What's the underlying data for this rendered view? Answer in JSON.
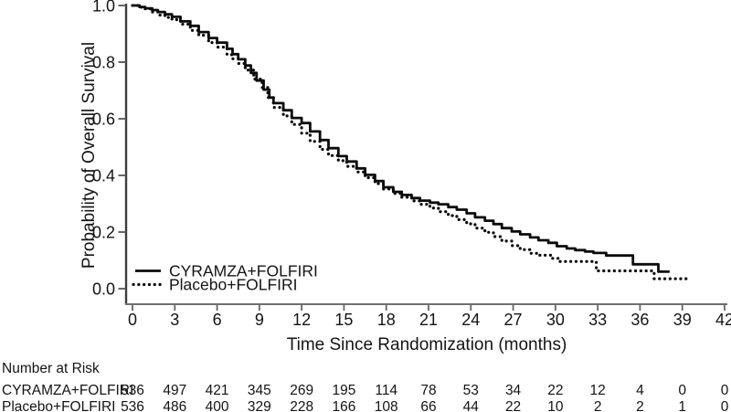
{
  "chart_data": {
    "type": "line",
    "subtype": "kaplan-meier-step",
    "title": "",
    "xlabel": "Time Since Randomization (months)",
    "ylabel": "Probability of Overall Survival",
    "xlim": [
      0,
      42
    ],
    "ylim": [
      0.0,
      1.0
    ],
    "x_ticks": [
      0,
      3,
      6,
      9,
      12,
      15,
      18,
      21,
      24,
      27,
      30,
      33,
      36,
      39,
      42
    ],
    "y_ticks": [
      "1.0",
      "0.8",
      "0.6",
      "0.4",
      "0.2",
      "0.0"
    ],
    "y_tick_values": [
      1.0,
      0.8,
      0.6,
      0.4,
      0.2,
      0.0
    ],
    "grid": "off",
    "legend_position": "inside-bottom-left",
    "line_color": "#0b0b0b",
    "series": [
      {
        "name": "CYRAMZA+FOLFIRI",
        "line_style": "solid",
        "points": [
          [
            0,
            1.0
          ],
          [
            0.5,
            0.995
          ],
          [
            0.9,
            0.99
          ],
          [
            1.4,
            0.984
          ],
          [
            1.8,
            0.977
          ],
          [
            2.3,
            0.969
          ],
          [
            2.8,
            0.96
          ],
          [
            3.4,
            0.944
          ],
          [
            4.1,
            0.928
          ],
          [
            4.7,
            0.906
          ],
          [
            5.4,
            0.885
          ],
          [
            6.0,
            0.869
          ],
          [
            6.7,
            0.847
          ],
          [
            7.1,
            0.828
          ],
          [
            7.5,
            0.81
          ],
          [
            8.0,
            0.788
          ],
          [
            8.4,
            0.762
          ],
          [
            8.8,
            0.735
          ],
          [
            9.3,
            0.703
          ],
          [
            9.7,
            0.675
          ],
          [
            10.0,
            0.655
          ],
          [
            10.7,
            0.63
          ],
          [
            11.3,
            0.603
          ],
          [
            12.0,
            0.585
          ],
          [
            12.6,
            0.555
          ],
          [
            13.3,
            0.525
          ],
          [
            13.9,
            0.496
          ],
          [
            14.6,
            0.468
          ],
          [
            15.2,
            0.449
          ],
          [
            15.9,
            0.425
          ],
          [
            16.5,
            0.402
          ],
          [
            17.2,
            0.38
          ],
          [
            17.8,
            0.358
          ],
          [
            18.5,
            0.342
          ],
          [
            19.1,
            0.331
          ],
          [
            19.8,
            0.32
          ],
          [
            20.4,
            0.311
          ],
          [
            21.1,
            0.304
          ],
          [
            21.7,
            0.298
          ],
          [
            22.4,
            0.288
          ],
          [
            23.0,
            0.279
          ],
          [
            23.7,
            0.266
          ],
          [
            24.3,
            0.252
          ],
          [
            25.0,
            0.24
          ],
          [
            25.6,
            0.228
          ],
          [
            26.2,
            0.214
          ],
          [
            26.9,
            0.202
          ],
          [
            27.5,
            0.192
          ],
          [
            28.2,
            0.181
          ],
          [
            28.8,
            0.171
          ],
          [
            29.5,
            0.162
          ],
          [
            30.1,
            0.15
          ],
          [
            30.8,
            0.142
          ],
          [
            31.4,
            0.136
          ],
          [
            32.1,
            0.131
          ],
          [
            32.7,
            0.126
          ],
          [
            33.6,
            0.117
          ],
          [
            35.5,
            0.086
          ],
          [
            37.3,
            0.06
          ],
          [
            38.1,
            0.06
          ]
        ]
      },
      {
        "name": "Placebo+FOLFIRI",
        "line_style": "dotted",
        "points": [
          [
            0,
            1.0
          ],
          [
            0.5,
            0.994
          ],
          [
            0.9,
            0.988
          ],
          [
            1.4,
            0.977
          ],
          [
            1.8,
            0.966
          ],
          [
            2.3,
            0.958
          ],
          [
            2.8,
            0.95
          ],
          [
            3.4,
            0.934
          ],
          [
            4.1,
            0.912
          ],
          [
            4.7,
            0.895
          ],
          [
            5.4,
            0.869
          ],
          [
            6.0,
            0.853
          ],
          [
            6.7,
            0.826
          ],
          [
            7.1,
            0.812
          ],
          [
            7.5,
            0.795
          ],
          [
            8.0,
            0.772
          ],
          [
            8.6,
            0.74
          ],
          [
            9.2,
            0.71
          ],
          [
            9.6,
            0.675
          ],
          [
            10.0,
            0.64
          ],
          [
            10.7,
            0.61
          ],
          [
            11.3,
            0.58
          ],
          [
            12.0,
            0.549
          ],
          [
            12.6,
            0.52
          ],
          [
            13.3,
            0.492
          ],
          [
            13.9,
            0.47
          ],
          [
            14.6,
            0.452
          ],
          [
            15.2,
            0.432
          ],
          [
            15.9,
            0.412
          ],
          [
            16.5,
            0.392
          ],
          [
            17.2,
            0.371
          ],
          [
            17.8,
            0.352
          ],
          [
            18.5,
            0.336
          ],
          [
            19.1,
            0.323
          ],
          [
            19.8,
            0.31
          ],
          [
            20.4,
            0.298
          ],
          [
            21.1,
            0.285
          ],
          [
            21.7,
            0.272
          ],
          [
            22.4,
            0.258
          ],
          [
            23.0,
            0.244
          ],
          [
            23.7,
            0.229
          ],
          [
            24.3,
            0.214
          ],
          [
            25.0,
            0.199
          ],
          [
            25.6,
            0.184
          ],
          [
            26.2,
            0.168
          ],
          [
            26.9,
            0.152
          ],
          [
            27.5,
            0.138
          ],
          [
            28.2,
            0.125
          ],
          [
            28.8,
            0.118
          ],
          [
            29.8,
            0.107
          ],
          [
            30.3,
            0.096
          ],
          [
            32.9,
            0.063
          ],
          [
            37.0,
            0.035
          ],
          [
            39.4,
            0.035
          ]
        ]
      }
    ]
  },
  "risk_table": {
    "header": "Number at Risk",
    "time_points": [
      0,
      3,
      6,
      9,
      12,
      15,
      18,
      21,
      24,
      27,
      30,
      33,
      36,
      39,
      42
    ],
    "rows": [
      {
        "label": "CYRAMZA+FOLFIRI",
        "counts": [
          536,
          497,
          421,
          345,
          269,
          195,
          114,
          78,
          53,
          34,
          22,
          12,
          4,
          0,
          0
        ]
      },
      {
        "label": "Placebo+FOLFIRI",
        "counts": [
          536,
          486,
          400,
          329,
          228,
          166,
          108,
          66,
          44,
          22,
          10,
          2,
          2,
          1,
          0
        ]
      }
    ]
  }
}
